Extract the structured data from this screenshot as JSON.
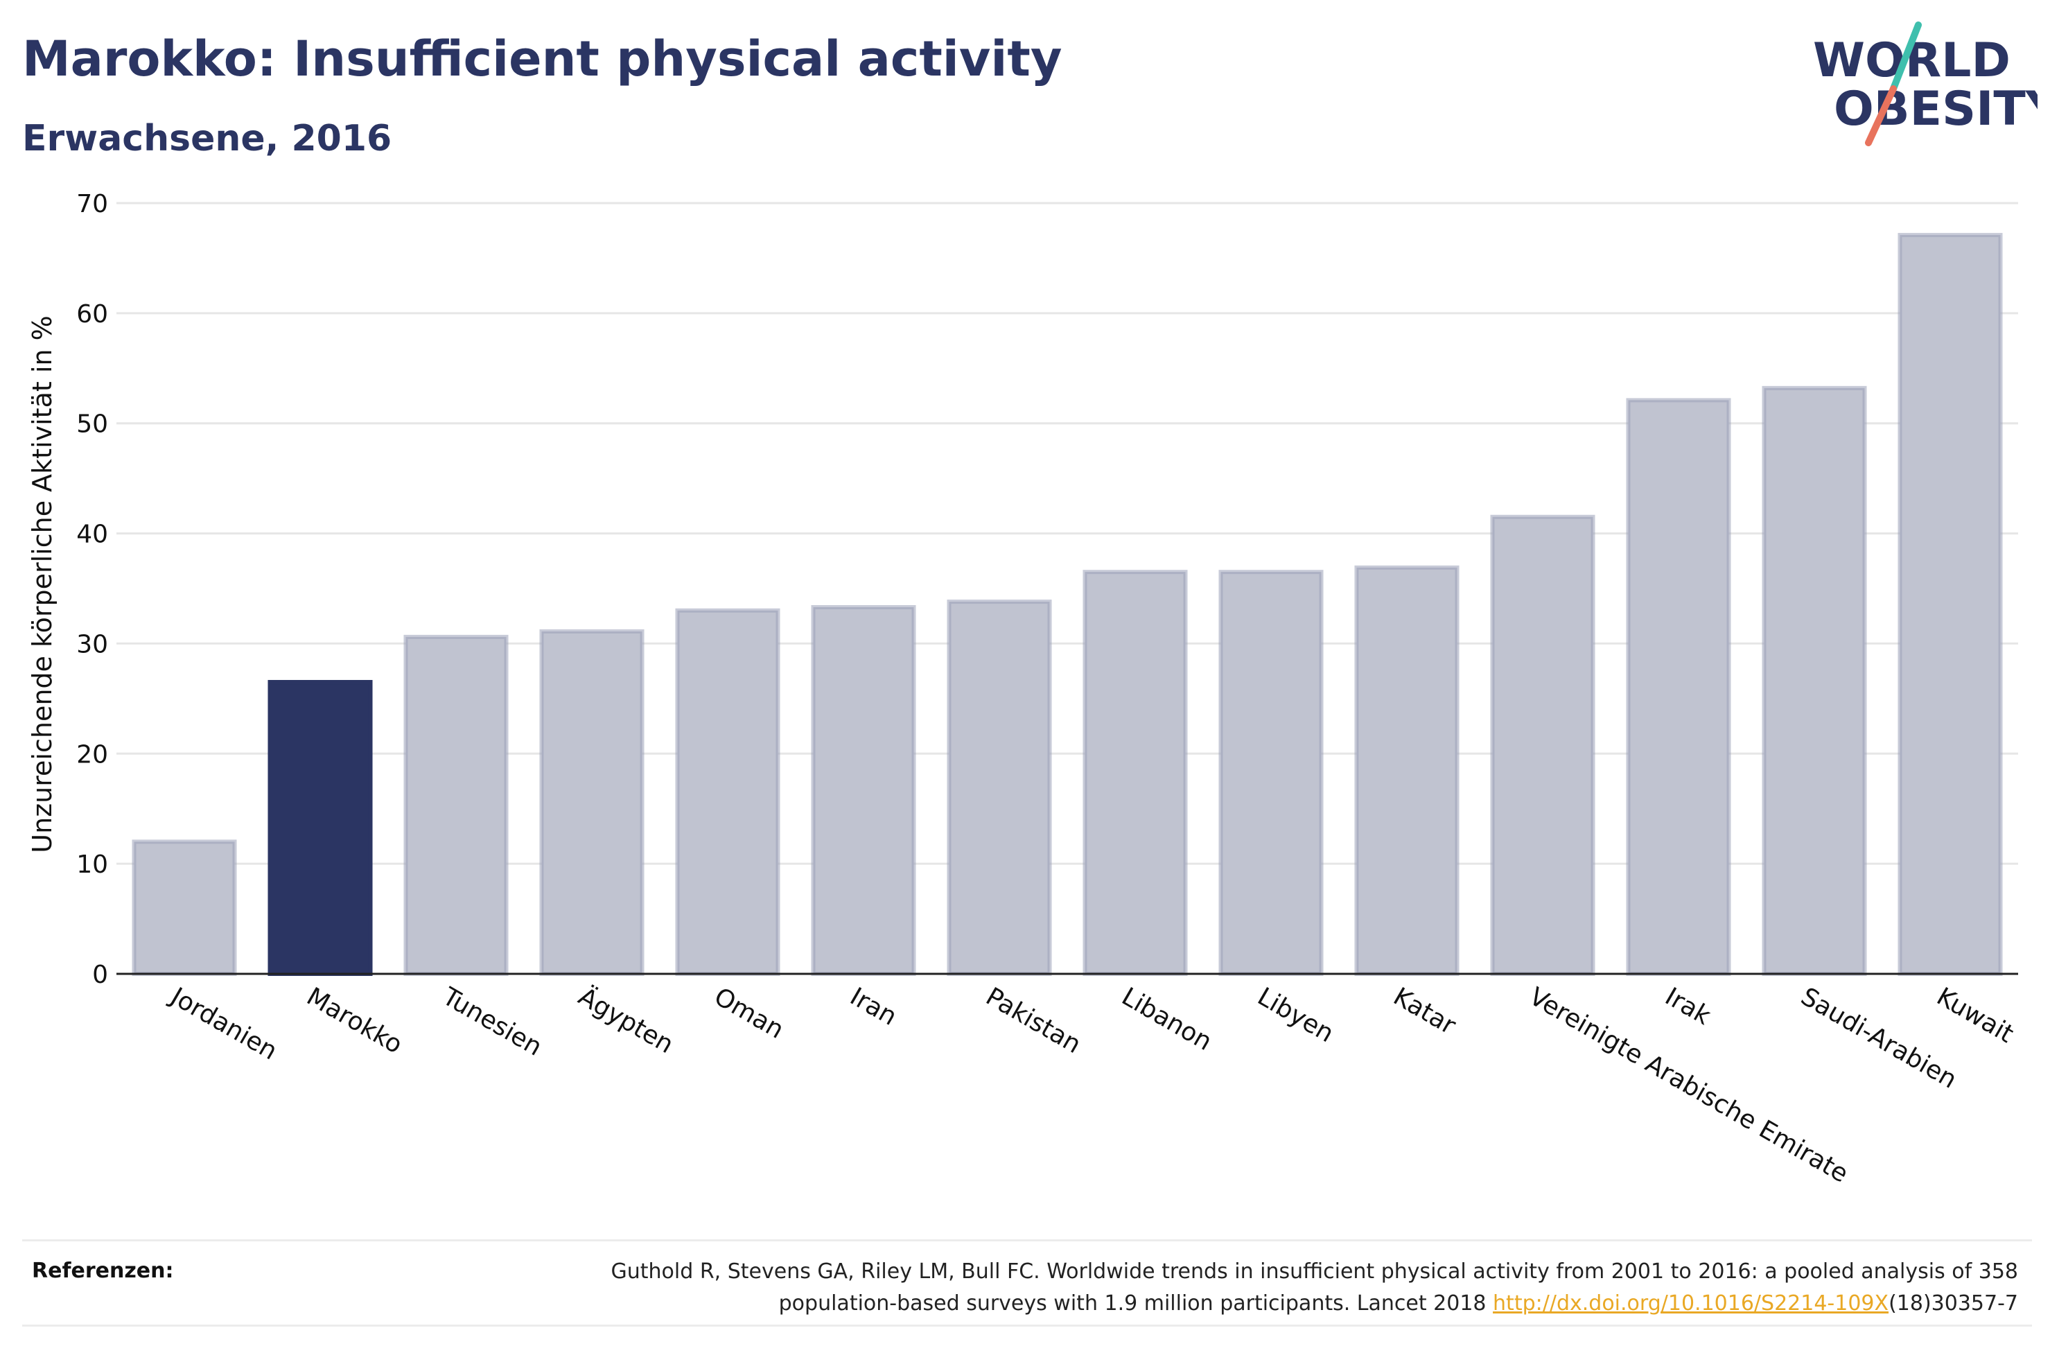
{
  "header": {
    "title": "Marokko: Insufficient physical activity",
    "subtitle": "Erwachsene, 2016"
  },
  "logo": {
    "line1": "WORLD",
    "line2": "OBESITY",
    "slash_top_color": "#3fbfad",
    "slash_bottom_color": "#e8735d",
    "text_color": "#2b3563"
  },
  "chart_data": {
    "type": "bar",
    "title": "Marokko: Insufficient physical activity",
    "subtitle": "Erwachsene, 2016",
    "xlabel": "",
    "ylabel": "Unzureichende körperliche Aktivität in %",
    "ylim": [
      0,
      70
    ],
    "yticks": [
      0,
      10,
      20,
      30,
      40,
      50,
      60,
      70
    ],
    "grid": true,
    "legend": "none",
    "highlight": "Marokko",
    "highlight_color": "#2b3563",
    "bar_color": "#c0c3d0",
    "bar_edge_color": "#9aa0b8",
    "categories": [
      "Jordanien",
      "Marokko",
      "Tunesien",
      "Ägypten",
      "Oman",
      "Iran",
      "Pakistan",
      "Libanon",
      "Libyen",
      "Katar",
      "Vereinigte Arabische Emirate",
      "Irak",
      "Saudi-Arabien",
      "Kuwait"
    ],
    "values": [
      12.0,
      26.5,
      30.6,
      31.1,
      33.0,
      33.3,
      33.8,
      36.5,
      36.5,
      36.9,
      41.5,
      52.1,
      53.2,
      67.1
    ]
  },
  "footer": {
    "references_label": "Referenzen:",
    "reference_line1": "Guthold R, Stevens GA, Riley LM, Bull FC. Worldwide trends in insufficient physical activity from 2001 to 2016: a pooled analysis of 358",
    "reference_line2_prefix": "population-based surveys with 1.9 million participants. Lancet 2018 ",
    "reference_link": "http://dx.doi.org/10.1016/S2214-109X",
    "reference_line2_suffix": "(18)30357-7"
  }
}
